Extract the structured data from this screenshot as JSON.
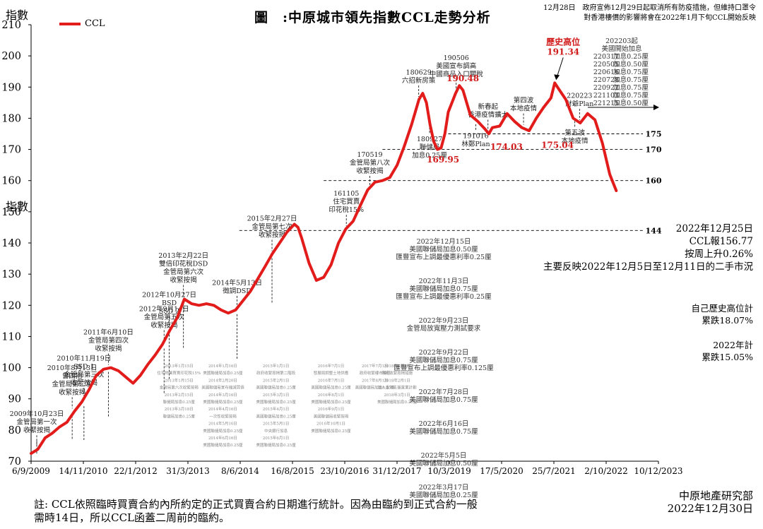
{
  "title": "圖　:中原城市領先指數CCL走勢分析",
  "top_note": [
    "12月28日　政府宣佈12月29日起取消所有防疫措施，但維持口罩令",
    "對香港樓價的影響將會在2022年1月下旬CCL開始反映"
  ],
  "y_axis_title": "指數",
  "y_axis_title_mid": "指數",
  "legend": "CCL",
  "latest": [
    "2022年12月25日",
    "CCL報156.77",
    "按周上升0.26%",
    "主要反映2022年12月5日至12月11日的二手市況"
  ],
  "from_high": [
    "自己歷史高位計",
    "累跌18.07%"
  ],
  "ytd": [
    "2022年計",
    "累跌15.05%"
  ],
  "footnote": "註: CCL依照臨時買賣合約內所約定的正式買賣合約日期進行統計。因為由臨約到正式合約一般\n需時14日，所以CCL函蓋二周前的臨約。",
  "source": [
    "中原地產研究部",
    "2022年12月30日"
  ],
  "colors": {
    "line": "#e21b1b",
    "label_red": "#d11a1a",
    "grid": "#000000"
  },
  "chart_data": {
    "type": "line",
    "series": [
      {
        "name": "CCL"
      }
    ],
    "x_ticks": [
      "6/9/2009",
      "14/11/2010",
      "22/1/2012",
      "31/3/2013",
      "8/6/2014",
      "16/8/2015",
      "23/10/2016",
      "31/12/2017",
      "10/3/2019",
      "17/5/2020",
      "25/7/2021",
      "2/10/2022",
      "10/12/2023"
    ],
    "ylim": [
      70,
      210
    ],
    "y_ticks": [
      70,
      80,
      90,
      100,
      110,
      120,
      130,
      140,
      150,
      160,
      170,
      180,
      190,
      200,
      210
    ],
    "points": [
      [
        "2009-09-06",
        72.5
      ],
      [
        "2009-11-01",
        73.8
      ],
      [
        "2010-01-01",
        77.5
      ],
      [
        "2010-03-01",
        79.0
      ],
      [
        "2010-05-01",
        81.0
      ],
      [
        "2010-07-01",
        82.5
      ],
      [
        "2010-09-01",
        86.0
      ],
      [
        "2010-11-01",
        89.0
      ],
      [
        "2011-01-01",
        93.0
      ],
      [
        "2011-03-01",
        97.5
      ],
      [
        "2011-05-01",
        99.5
      ],
      [
        "2011-07-01",
        100.0
      ],
      [
        "2011-09-01",
        99.0
      ],
      [
        "2011-11-01",
        97.0
      ],
      [
        "2012-01-01",
        95.0
      ],
      [
        "2012-03-01",
        97.5
      ],
      [
        "2012-05-01",
        101.0
      ],
      [
        "2012-07-01",
        104.0
      ],
      [
        "2012-09-01",
        107.5
      ],
      [
        "2012-11-01",
        112.0
      ],
      [
        "2013-01-01",
        116.0
      ],
      [
        "2013-03-01",
        122.0
      ],
      [
        "2013-05-01",
        120.5
      ],
      [
        "2013-07-01",
        120.0
      ],
      [
        "2013-09-01",
        120.5
      ],
      [
        "2013-11-01",
        120.0
      ],
      [
        "2014-01-01",
        118.5
      ],
      [
        "2014-03-01",
        117.5
      ],
      [
        "2014-05-01",
        118.5
      ],
      [
        "2014-07-01",
        121.5
      ],
      [
        "2014-09-01",
        124.5
      ],
      [
        "2014-11-01",
        128.5
      ],
      [
        "2015-01-01",
        132.5
      ],
      [
        "2015-03-01",
        136.5
      ],
      [
        "2015-05-01",
        140.0
      ],
      [
        "2015-07-01",
        143.5
      ],
      [
        "2015-09-01",
        146.0
      ],
      [
        "2015-10-01",
        145.0
      ],
      [
        "2015-11-01",
        141.5
      ],
      [
        "2016-01-01",
        133.5
      ],
      [
        "2016-03-01",
        128.0
      ],
      [
        "2016-05-01",
        129.0
      ],
      [
        "2016-07-01",
        133.0
      ],
      [
        "2016-09-01",
        140.0
      ],
      [
        "2016-11-01",
        144.5
      ],
      [
        "2017-01-01",
        147.0
      ],
      [
        "2017-03-01",
        152.0
      ],
      [
        "2017-05-01",
        157.0
      ],
      [
        "2017-07-01",
        159.5
      ],
      [
        "2017-09-01",
        160.0
      ],
      [
        "2017-11-01",
        161.0
      ],
      [
        "2018-01-01",
        165.0
      ],
      [
        "2018-03-01",
        171.0
      ],
      [
        "2018-05-01",
        178.0
      ],
      [
        "2018-07-01",
        186.0
      ],
      [
        "2018-08-01",
        188.0
      ],
      [
        "2018-09-01",
        185.0
      ],
      [
        "2018-10-01",
        178.0
      ],
      [
        "2018-11-01",
        172.5
      ],
      [
        "2018-12-01",
        170.0
      ],
      [
        "2019-01-01",
        170.5
      ],
      [
        "2019-02-01",
        175.0
      ],
      [
        "2019-03-01",
        182.0
      ],
      [
        "2019-05-01",
        188.0
      ],
      [
        "2019-06-01",
        190.48
      ],
      [
        "2019-07-01",
        189.0
      ],
      [
        "2019-09-01",
        181.0
      ],
      [
        "2019-11-01",
        179.0
      ],
      [
        "2020-01-01",
        176.5
      ],
      [
        "2020-02-01",
        175.0
      ],
      [
        "2020-03-01",
        177.0
      ],
      [
        "2020-05-01",
        177.5
      ],
      [
        "2020-07-01",
        181.5
      ],
      [
        "2020-09-01",
        179.0
      ],
      [
        "2020-11-01",
        177.0
      ],
      [
        "2021-01-01",
        176.0
      ],
      [
        "2021-03-01",
        180.0
      ],
      [
        "2021-05-01",
        183.5
      ],
      [
        "2021-07-01",
        186.5
      ],
      [
        "2021-08-01",
        191.34
      ],
      [
        "2021-09-01",
        189.5
      ],
      [
        "2021-11-01",
        186.0
      ],
      [
        "2022-01-01",
        180.0
      ],
      [
        "2022-03-01",
        178.5
      ],
      [
        "2022-05-01",
        181.5
      ],
      [
        "2022-07-01",
        179.5
      ],
      [
        "2022-09-01",
        172.0
      ],
      [
        "2022-11-01",
        162.0
      ],
      [
        "2022-12-25",
        156.77
      ]
    ],
    "value_labels": [
      {
        "text": "191.34",
        "date": "2021-08-01",
        "y": 191.34
      },
      {
        "text": "190.48",
        "date": "2019-06-01",
        "y": 190.48
      },
      {
        "text": "169.95",
        "date": "2018-12-01",
        "y": 169.95
      },
      {
        "text": "174.03",
        "date": "2020-03-01",
        "y": 174.03
      },
      {
        "text": "175.04",
        "date": "2021-01-01",
        "y": 175.04
      }
    ],
    "record_high_label": "歷史高位",
    "reference_lines": [
      {
        "y": 175,
        "label": "175"
      },
      {
        "y": 170,
        "label": "170"
      },
      {
        "y": 160,
        "label": "160"
      },
      {
        "y": 144,
        "label": "144"
      }
    ],
    "annotations": [
      {
        "date": "2009-10-23",
        "lines": [
          "2009年10月23日",
          "金管局第一次",
          "收緊按揭"
        ]
      },
      {
        "date": "2010-08-13",
        "lines": [
          "2010年8月13日",
          "曾四招",
          "金管局第二次",
          "收緊按揭"
        ]
      },
      {
        "date": "2010-11-19",
        "lines": [
          "2010年11月19日",
          "SSD 1",
          "金管局第三次",
          "收緊按揭"
        ]
      },
      {
        "date": "2011-06-10",
        "lines": [
          "2011年6月10日",
          "金管局第四次",
          "收緊按揭"
        ]
      },
      {
        "date": "2012-09-14",
        "lines": [
          "2012年9月14日",
          "金管局第五次",
          "收緊按揭"
        ]
      },
      {
        "date": "2012-10-27",
        "lines": [
          "2012年10月27日",
          "BSD",
          "SSD 2"
        ]
      },
      {
        "date": "2013-02-22",
        "lines": [
          "2013年2月22日",
          "雙倍印花稅DSD",
          "金管局第六次",
          "收緊按揭"
        ]
      },
      {
        "date": "2014-05-13",
        "lines": [
          "2014年5月13日",
          "徵調DSD"
        ]
      },
      {
        "date": "2015-02-27",
        "lines": [
          "2015年2月27日",
          "金管局第七次",
          "收緊按揭"
        ]
      },
      {
        "date": "2016-11-05",
        "lines": [
          "161105",
          "住宅買賣",
          "印花稅15%"
        ]
      },
      {
        "date": "2017-05-19",
        "lines": [
          "170519",
          "金管局第八次",
          "收緊按揭"
        ]
      },
      {
        "date": "2018-06-29",
        "lines": [
          "180629",
          "六招新房策"
        ]
      },
      {
        "date": "2018-09-27",
        "lines": [
          "180927",
          "聯儲局",
          "加息0.25厘"
        ]
      },
      {
        "date": "2019-05-06",
        "lines": [
          "190506",
          "美國宣布調高",
          "中國商品入口關稅"
        ]
      },
      {
        "date": "2019-10-16",
        "lines": [
          "191016",
          "林鄭Plan"
        ]
      },
      {
        "date": "2020-01-25",
        "lines": [
          "新春起",
          "香港疫情擴大"
        ]
      },
      {
        "date": "2020-11-15",
        "lines": [
          "第四波",
          "本地疫情"
        ]
      },
      {
        "date": "2022-02-23",
        "lines": [
          "220223",
          "財爺Plan"
        ]
      },
      {
        "date": "2022-01-15",
        "lines": [
          "第五波",
          "本地疫情"
        ]
      }
    ],
    "rate_hikes": {
      "header": [
        "202203起",
        "美國開始加息"
      ],
      "rows": [
        [
          "220317",
          "加息0.25厘"
        ],
        [
          "220505",
          "加息0.50厘"
        ],
        [
          "220616",
          "加息0.75厘"
        ],
        [
          "220728",
          "加息0.75厘"
        ],
        [
          "220922",
          "加息0.75厘"
        ],
        [
          "221103",
          "加息0.75厘"
        ],
        [
          "221215",
          "加息0.50厘"
        ]
      ]
    },
    "fed_events": [
      [
        "2022年12月15日",
        "美國聯儲局加息0.50厘",
        "匯豐宣布上調最優惠利率0.25厘"
      ],
      [
        "2022年11月3日",
        "美國聯儲局加息0.75厘",
        "匯豐宣布上調最優惠利率0.25厘"
      ],
      [
        "2022年9月23日",
        "金管局放寬壓力測試要求"
      ],
      [
        "2022年9月22日",
        "美國聯儲局加息0.75厘",
        "匯豐宣布上調最優惠利率0.125厘"
      ],
      [
        "2022年7月28日",
        "美國聯儲局加息0.75厘"
      ],
      [
        "2022年6月16日",
        "美國聯儲局加息0.75厘"
      ],
      [
        "2022年5月5日",
        "美國聯儲局加息0.50厘"
      ],
      [
        "2022年3月17日",
        "美國聯儲局加息0.25厘"
      ]
    ],
    "minor_notes": [
      {
        "date": "2013-01-15",
        "lines": [
          "2013年1月15日",
          "住宅物業買賣印花稅15%",
          "2013年1月15日",
          "金管局第六次收緊按揭",
          "2013年2月15日",
          "聯儲局加息0.25厘",
          "2013年3月18日",
          "聯儲局加息0.25厘"
        ]
      },
      {
        "date": "2014-01-15",
        "lines": [
          "2014年1月16日",
          "美國聯儲局加息0.25厘",
          "2014年2月20日",
          "美國聯儲局宣布縮減買債",
          "2014年3月16日",
          "美國聯儲局加息0.25厘",
          "2014年4月16日",
          "一次性收緊按揭",
          "2014年5月16日",
          "美國聯儲局加息0.25厘",
          "2014年6月16日",
          "美國聯儲局加息0.25厘"
        ]
      },
      {
        "date": "2015-04-01",
        "lines": [
          "2015年1月1日",
          "政府收緊按揭第二階段",
          "2015年2月1日",
          "美國聯儲局加息0.25厘",
          "2015年3月1日",
          "美國聯儲局加息0.25厘",
          "2015年4月1日",
          "美國聯儲局加息0.25厘",
          "2015年5月1日",
          "中央銀行加息",
          "2015年6月1日",
          "美國聯儲局加息0.25厘"
        ]
      },
      {
        "date": "2016-07-01",
        "lines": [
          "2016年7月1日",
          "發展局調整土地供應",
          "2016年7月1日",
          "美國聯儲局加息0.25厘",
          "2016年8月1日",
          "美國聯儲局加息0.25厘",
          "2016年9月1日",
          "美國聯儲局收緊按揭",
          "2016年10月1日",
          "美國聯儲局加息0.25厘"
        ]
      },
      {
        "date": "2017-07-01",
        "lines": [
          "2017年7月1日",
          "政府收緊樓市辣招",
          "2017年8月1日",
          "美國聯儲局加息0.25厘"
        ]
      },
      {
        "date": "2018-01-01",
        "lines": [
          "2018年1月1日",
          "政府收緊按揭措施",
          "2018年2月1日",
          "加入香港支援置業計劃",
          "2018年3月1日",
          "美國聯儲局加息0.25厘"
        ]
      }
    ]
  }
}
